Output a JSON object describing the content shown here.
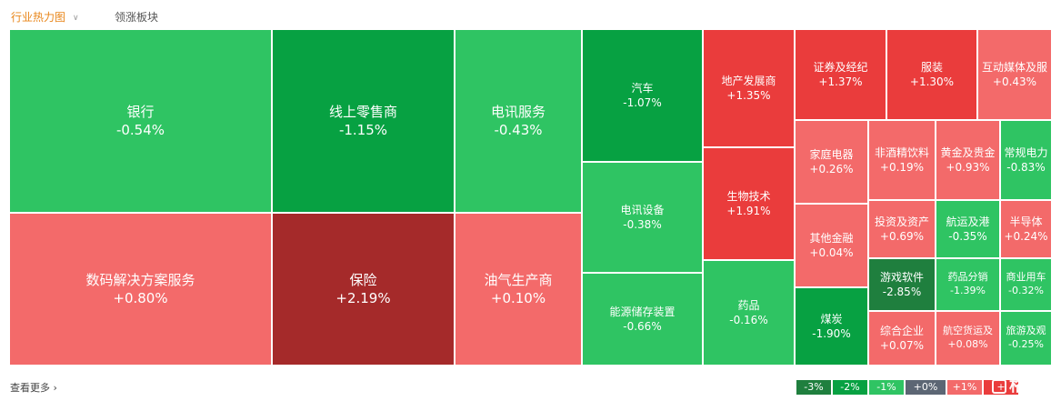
{
  "tabs": [
    {
      "label": "行业热力图"
    },
    {
      "label": "领涨板块"
    }
  ],
  "footer": {
    "more_label": "查看更多 ›"
  },
  "legend": [
    "-3%",
    "-2%",
    "-1%",
    "+0%",
    "+1%",
    "+"
  ],
  "watermark": "格隆汇",
  "colors": {
    "dark_green": "#1f7f3e",
    "green": "#07a142",
    "medium_green": "#2fc463",
    "light_green": "#2fc463",
    "gray": "#5c6674",
    "light_red": "#f36a6a",
    "red": "#ea3c3c",
    "dark_red": "#a52a2a"
  },
  "sectors": [
    {
      "name": "银行",
      "change": "-0.54%"
    },
    {
      "name": "线上零售商",
      "change": "-1.15%"
    },
    {
      "name": "电讯服务",
      "change": "-0.43%"
    },
    {
      "name": "汽车",
      "change": "-1.07%"
    },
    {
      "name": "地产发展商",
      "change": "+1.35%"
    },
    {
      "name": "证券及经纪",
      "change": "+1.37%"
    },
    {
      "name": "服装",
      "change": "+1.30%"
    },
    {
      "name": "互动媒体及服",
      "change": "+0.43%"
    },
    {
      "name": "数码解决方案服务",
      "change": "+0.80%"
    },
    {
      "name": "保险",
      "change": "+2.19%"
    },
    {
      "name": "油气生产商",
      "change": "+0.10%"
    },
    {
      "name": "电讯设备",
      "change": "-0.38%"
    },
    {
      "name": "能源储存装置",
      "change": "-0.66%"
    },
    {
      "name": "生物技术",
      "change": "+1.91%"
    },
    {
      "name": "药品",
      "change": "-0.16%"
    },
    {
      "name": "家庭电器",
      "change": "+0.26%"
    },
    {
      "name": "非酒精饮料",
      "change": "+0.19%"
    },
    {
      "name": "黄金及贵金",
      "change": "+0.93%"
    },
    {
      "name": "常规电力",
      "change": "-0.83%"
    },
    {
      "name": "其他金融",
      "change": "+0.04%"
    },
    {
      "name": "投资及资产",
      "change": "+0.69%"
    },
    {
      "name": "航运及港",
      "change": "-0.35%"
    },
    {
      "name": "半导体",
      "change": "+0.24%"
    },
    {
      "name": "游戏软件",
      "change": "-2.85%"
    },
    {
      "name": "药品分销",
      "change": "-1.39%"
    },
    {
      "name": "商业用车",
      "change": "-0.32%"
    },
    {
      "name": "煤炭",
      "change": "-1.90%"
    },
    {
      "name": "综合企业",
      "change": "+0.07%"
    },
    {
      "name": "航空货运及",
      "change": "+0.08%"
    },
    {
      "name": "旅游及观",
      "change": "-0.25%"
    }
  ]
}
